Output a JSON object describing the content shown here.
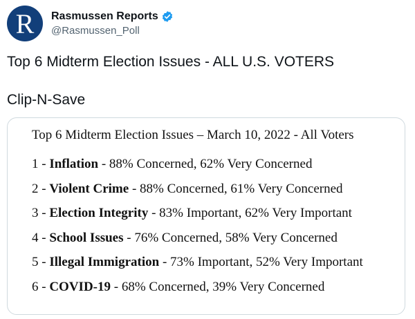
{
  "account": {
    "display_name": "Rasmussen Reports",
    "handle": "@Rasmussen_Poll",
    "avatar_letter": "R",
    "verified": true,
    "icons": {
      "avatar": "rasmussen-logo",
      "verified": "verified-badge-icon"
    },
    "colors": {
      "avatar_bg": "#123f7a",
      "verified": "#1d9bf0"
    }
  },
  "tweet": {
    "line1": "Top 6 Midterm Election Issues - ALL U.S. VOTERS",
    "line2": "Clip-N-Save"
  },
  "card": {
    "title": "Top 6 Midterm Election Issues – March 10, 2022 - All Voters",
    "issues": [
      {
        "rank": "1",
        "name": "Inflation",
        "detail": "88% Concerned, 62% Very Concerned"
      },
      {
        "rank": "2",
        "name": "Violent Crime",
        "detail": "88% Concerned, 61% Very Concerned"
      },
      {
        "rank": "3",
        "name": "Election Integrity",
        "detail": "83% Important, 62% Very Important"
      },
      {
        "rank": "4",
        "name": "School Issues",
        "detail": "76% Concerned, 58% Very Concerned"
      },
      {
        "rank": "5",
        "name": "Illegal Immigration",
        "detail": "73% Important, 52% Very Important"
      },
      {
        "rank": "6",
        "name": "COVID-19",
        "detail": "68% Concerned, 39% Very Concerned"
      }
    ]
  }
}
